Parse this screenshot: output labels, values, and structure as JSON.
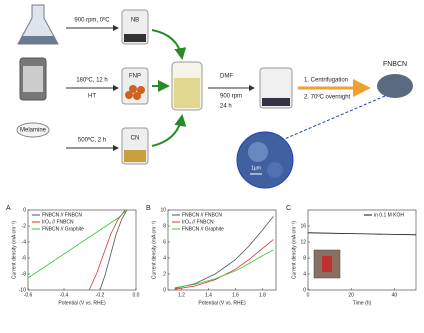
{
  "diagram": {
    "step1": "900 rpm, 0ºC",
    "nb": "NB",
    "step2": "180ºC, 12 h",
    "ht": "HT",
    "fnp": "FNP",
    "step3": "500ºC, 2 h",
    "cn": "CN",
    "melamine": "Melamine",
    "dmf": "DMF",
    "rpm": "900 rpm",
    "time": "24 h",
    "centrifugation": "1. Centrifugation",
    "drying": "2. 70ºC overnight",
    "product": "FNBCN",
    "scale": "1µm"
  },
  "chart_data": [
    {
      "type": "line",
      "panel": "A",
      "xlabel": "Potential (V vs. RHE)",
      "ylabel": "Current density (mA cm⁻²)",
      "xlim": [
        -0.6,
        0
      ],
      "ylim": [
        -10,
        0
      ],
      "xticks": [
        -0.6,
        -0.4,
        -0.2,
        {
          "value": 0,
          "label": "0.0"
        }
      ],
      "yticks": [
        -10,
        -8,
        -6,
        -4,
        -2,
        0
      ],
      "legend": "upper left",
      "series": [
        {
          "name": "FNBCN // FNBCN",
          "color": "#555555",
          "x": [
            -0.2,
            -0.17,
            -0.14,
            -0.11,
            -0.08,
            -0.05
          ],
          "values": [
            -10,
            -8,
            -5.5,
            -3,
            -1.2,
            0
          ]
        },
        {
          "name": "IrO₂ // FNBCN",
          "color": "#e03030",
          "x": [
            -0.26,
            -0.22,
            -0.18,
            -0.14,
            -0.1,
            -0.06
          ],
          "values": [
            -10,
            -8,
            -5.5,
            -3,
            -1.2,
            0
          ]
        },
        {
          "name": "FNBCN // Graphite",
          "color": "#33cc33",
          "x": [
            -0.6,
            -0.5,
            -0.4,
            -0.3,
            -0.2,
            -0.1,
            -0.05
          ],
          "values": [
            -8.5,
            -7,
            -5.5,
            -4,
            -2.5,
            -1,
            0
          ]
        }
      ]
    },
    {
      "type": "line",
      "panel": "B",
      "xlabel": "Potential (V vs. RHE)",
      "ylabel": "Current density (mA cm⁻²)",
      "xlim": [
        1.1,
        1.9
      ],
      "ylim": [
        0,
        10
      ],
      "xticks": [
        1.2,
        1.4,
        1.6,
        1.8
      ],
      "yticks": [
        0,
        2,
        4,
        6,
        8,
        10
      ],
      "legend": "upper left",
      "series": [
        {
          "name": "FNBCN // FNBCN",
          "color": "#555555",
          "x": [
            1.15,
            1.3,
            1.45,
            1.6,
            1.7,
            1.8,
            1.88
          ],
          "values": [
            0.2,
            0.8,
            2,
            3.8,
            5.5,
            7.5,
            9.2
          ]
        },
        {
          "name": "IrO₂ // FNBCN",
          "color": "#e03030",
          "x": [
            1.15,
            1.3,
            1.45,
            1.6,
            1.7,
            1.8,
            1.88
          ],
          "values": [
            0.1,
            0.5,
            1.3,
            2.6,
            3.8,
            5.2,
            6.3
          ]
        },
        {
          "name": "FNBCN // Graphite",
          "color": "#33cc33",
          "x": [
            1.15,
            1.3,
            1.45,
            1.6,
            1.7,
            1.8,
            1.88
          ],
          "values": [
            0.3,
            0.7,
            1.4,
            2.4,
            3.3,
            4.3,
            5
          ]
        }
      ]
    },
    {
      "type": "line",
      "panel": "C",
      "xlabel": "Time (h)",
      "ylabel": "Current density (mA cm⁻²)",
      "xlim": [
        0,
        50
      ],
      "ylim": [
        0,
        20
      ],
      "xticks": [
        0,
        20,
        40
      ],
      "yticks": [
        0,
        4,
        8,
        12,
        16
      ],
      "legend": "upper right",
      "series": [
        {
          "name": "in 0.1 M KOH",
          "color": "#111111",
          "x": [
            0,
            10,
            20,
            30,
            40,
            50
          ],
          "values": [
            14.3,
            14.2,
            14.1,
            14,
            13.9,
            13.8
          ]
        }
      ]
    }
  ]
}
